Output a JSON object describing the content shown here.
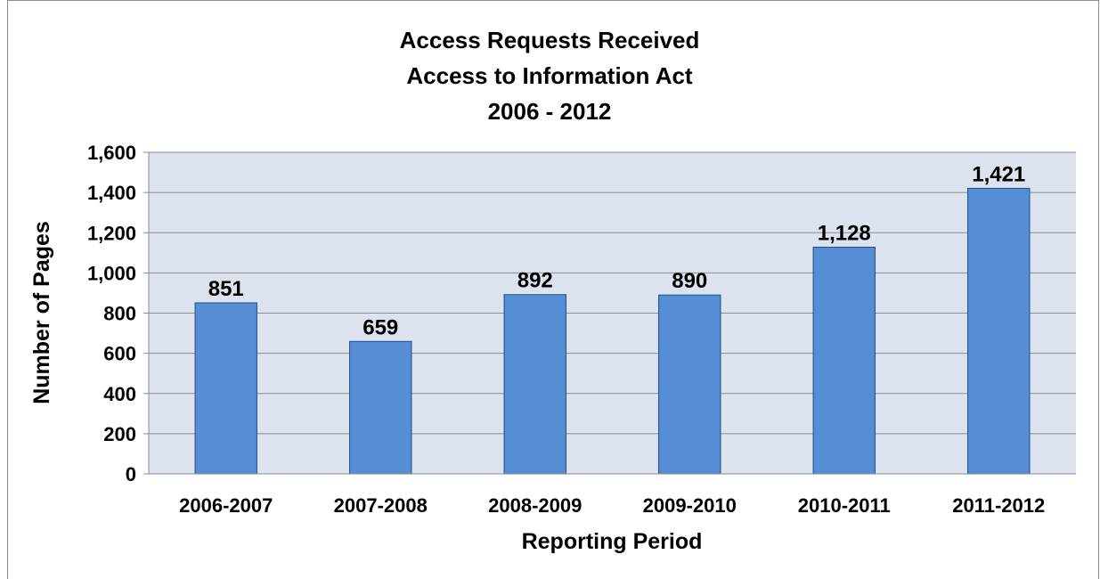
{
  "chart_data": {
    "type": "bar",
    "title": [
      "Access Requests Received",
      "Access to Information Act",
      "2006 - 2012"
    ],
    "xlabel": "Reporting Period",
    "ylabel": "Number of Pages",
    "categories": [
      "2006-2007",
      "2007-2008",
      "2008-2009",
      "2009-2010",
      "2010-2011",
      "2011-2012"
    ],
    "values": [
      851,
      659,
      892,
      890,
      1128,
      1421
    ],
    "value_labels": [
      "851",
      "659",
      "892",
      "890",
      "1,128",
      "1,421"
    ],
    "ylim": [
      0,
      1600
    ],
    "yticks": [
      0,
      200,
      400,
      600,
      800,
      1000,
      1200,
      1400,
      1600
    ],
    "ytick_labels": [
      "0",
      "200",
      "400",
      "600",
      "800",
      "1,000",
      "1,200",
      "1,400",
      "1,600"
    ],
    "grid": true,
    "legend": "none",
    "colors": {
      "bar_fill": "#558ed5",
      "bar_stroke": "#1f4e8c",
      "plot_background": "#dce3ef",
      "gridline": "#8c8c8c",
      "frame": "#8c8c8c"
    }
  }
}
